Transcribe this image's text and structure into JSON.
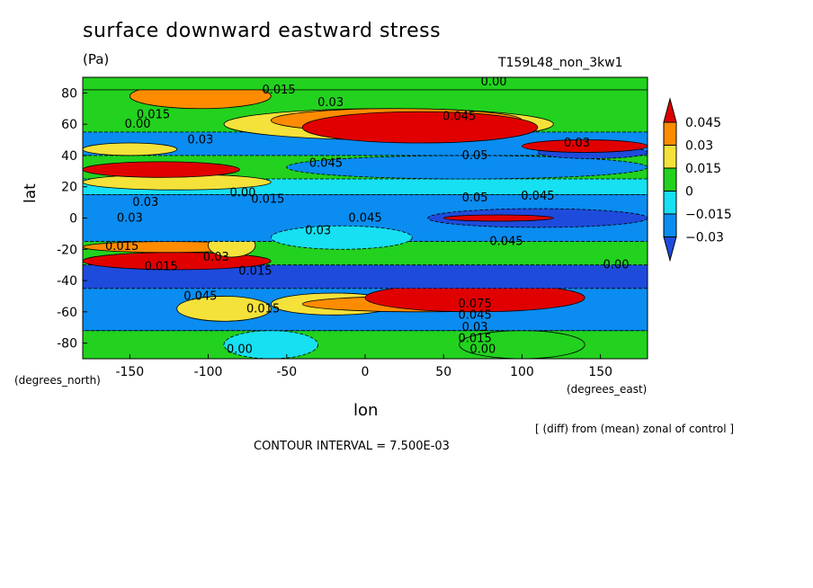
{
  "chart_data": {
    "type": "heatmap",
    "title": "surface downward eastward stress",
    "units": "(Pa)",
    "run_id": "T159L48_non_3kw1",
    "xlabel": "lon",
    "ylabel": "lat",
    "x_units_label": "(degrees_east)",
    "y_units_label": "(degrees_north)",
    "note": "[ (diff) from (mean) zonal of control ]",
    "contour_interval": "CONTOUR INTERVAL = 7.500E-03",
    "xlim": [
      -180,
      180
    ],
    "ylim": [
      -90,
      90
    ],
    "x_ticks": [
      -150,
      -100,
      -50,
      0,
      50,
      100,
      150
    ],
    "x_tick_labels": [
      "-150",
      "-100",
      "-50",
      "0",
      "50",
      "100",
      "150"
    ],
    "y_ticks": [
      80,
      60,
      40,
      20,
      0,
      -20,
      -40,
      -60,
      -80
    ],
    "y_tick_labels": [
      "80",
      "60",
      "40",
      "20",
      "0",
      "-20",
      "-40",
      "-60",
      "-80"
    ],
    "colorbar": {
      "labels": [
        "0.045",
        "0.03",
        "0.015",
        "0",
        "−0.015",
        "−0.03"
      ],
      "colors": [
        "#e00000",
        "#ff8c00",
        "#f4e23a",
        "#22d21e",
        "#16e0f2",
        "#0a8cf0",
        "#1e4bdc"
      ]
    },
    "grid": false,
    "regions": [
      {
        "lon": [
          -180,
          180
        ],
        "lat": [
          -90,
          90
        ],
        "level": 0.0
      },
      {
        "lon": [
          -180,
          180
        ],
        "lat": [
          -90,
          -72
        ],
        "level": 0.0
      },
      {
        "lon": [
          -90,
          -30
        ],
        "lat": [
          -90,
          -72
        ],
        "level": -0.015
      },
      {
        "lon": [
          60,
          140
        ],
        "lat": [
          -90,
          -72
        ],
        "level": 0.0
      },
      {
        "lon": [
          -180,
          180
        ],
        "lat": [
          -72,
          -45
        ],
        "level": -0.03
      },
      {
        "lon": [
          -120,
          -60
        ],
        "lat": [
          -66,
          -50
        ],
        "level": 0.015
      },
      {
        "lon": [
          -60,
          20
        ],
        "lat": [
          -62,
          -48
        ],
        "level": 0.015
      },
      {
        "lon": [
          -40,
          110
        ],
        "lat": [
          -60,
          -50
        ],
        "level": 0.03
      },
      {
        "lon": [
          0,
          140
        ],
        "lat": [
          -60,
          -42
        ],
        "level": 0.045
      },
      {
        "lon": [
          -180,
          180
        ],
        "lat": [
          -45,
          -30
        ],
        "level": -0.045
      },
      {
        "lon": [
          -180,
          -60
        ],
        "lat": [
          -33,
          -22
        ],
        "level": 0.045
      },
      {
        "lon": [
          -180,
          -70
        ],
        "lat": [
          -22,
          -15
        ],
        "level": 0.03
      },
      {
        "lon": [
          -100,
          -70
        ],
        "lat": [
          -25,
          -10
        ],
        "level": 0.015
      },
      {
        "lon": [
          -180,
          180
        ],
        "lat": [
          -15,
          15
        ],
        "level": -0.03
      },
      {
        "lon": [
          -60,
          30
        ],
        "lat": [
          -20,
          -5
        ],
        "level": -0.015
      },
      {
        "lon": [
          40,
          180
        ],
        "lat": [
          -6,
          6
        ],
        "level": -0.045
      },
      {
        "lon": [
          50,
          120
        ],
        "lat": [
          -2,
          2
        ],
        "level": 0.045
      },
      {
        "lon": [
          -180,
          180
        ],
        "lat": [
          15,
          25
        ],
        "level": -0.015
      },
      {
        "lon": [
          -180,
          -60
        ],
        "lat": [
          18,
          28
        ],
        "level": 0.015
      },
      {
        "lon": [
          -180,
          -80
        ],
        "lat": [
          26,
          36
        ],
        "level": 0.045
      },
      {
        "lon": [
          -50,
          180
        ],
        "lat": [
          25,
          40
        ],
        "level": -0.03
      },
      {
        "lon": [
          -180,
          180
        ],
        "lat": [
          40,
          55
        ],
        "level": -0.03
      },
      {
        "lon": [
          -180,
          -120
        ],
        "lat": [
          40,
          48
        ],
        "level": 0.015
      },
      {
        "lon": [
          -90,
          120
        ],
        "lat": [
          50,
          70
        ],
        "level": 0.015
      },
      {
        "lon": [
          -60,
          100
        ],
        "lat": [
          55,
          70
        ],
        "level": 0.03
      },
      {
        "lon": [
          -40,
          110
        ],
        "lat": [
          48,
          68
        ],
        "level": 0.045
      },
      {
        "lon": [
          110,
          180
        ],
        "lat": [
          38,
          46
        ],
        "level": -0.045
      },
      {
        "lon": [
          100,
          180
        ],
        "lat": [
          42,
          50
        ],
        "level": 0.045
      },
      {
        "lon": [
          -150,
          -60
        ],
        "lat": [
          70,
          86
        ],
        "level": 0.03
      },
      {
        "lon": [
          -180,
          180
        ],
        "lat": [
          82,
          90
        ],
        "level": 0.0
      }
    ],
    "contour_labels": [
      {
        "lon": -55,
        "lat": 82,
        "text": "0.015"
      },
      {
        "lon": -22,
        "lat": 74,
        "text": "0.03"
      },
      {
        "lon": 82,
        "lat": 87,
        "text": "0.00"
      },
      {
        "lon": -135,
        "lat": 66,
        "text": "0.015"
      },
      {
        "lon": -145,
        "lat": 60,
        "text": "0.00"
      },
      {
        "lon": 60,
        "lat": 65,
        "text": "0.045"
      },
      {
        "lon": -105,
        "lat": 50,
        "text": "0.03"
      },
      {
        "lon": 135,
        "lat": 48,
        "text": "0.03"
      },
      {
        "lon": -25,
        "lat": 35,
        "text": "0.045"
      },
      {
        "lon": 70,
        "lat": 40,
        "text": "0.05"
      },
      {
        "lon": -78,
        "lat": 16,
        "text": "0.00"
      },
      {
        "lon": -62,
        "lat": 12,
        "text": "0.015"
      },
      {
        "lon": -140,
        "lat": 10,
        "text": "0.03"
      },
      {
        "lon": -150,
        "lat": 0,
        "text": "0.03"
      },
      {
        "lon": 0,
        "lat": 0,
        "text": "0.045"
      },
      {
        "lon": -30,
        "lat": -8,
        "text": "0.03"
      },
      {
        "lon": 70,
        "lat": 13,
        "text": "0.05"
      },
      {
        "lon": 110,
        "lat": 14,
        "text": "0.045"
      },
      {
        "lon": 90,
        "lat": -15,
        "text": "0.045"
      },
      {
        "lon": -155,
        "lat": -18,
        "text": "0.015"
      },
      {
        "lon": -95,
        "lat": -25,
        "text": "0.03"
      },
      {
        "lon": -130,
        "lat": -31,
        "text": "0.015"
      },
      {
        "lon": -70,
        "lat": -34,
        "text": "0.015"
      },
      {
        "lon": -105,
        "lat": -50,
        "text": "0.045"
      },
      {
        "lon": -65,
        "lat": -58,
        "text": "0.015"
      },
      {
        "lon": 70,
        "lat": -55,
        "text": "0.075"
      },
      {
        "lon": 70,
        "lat": -62,
        "text": "0.045"
      },
      {
        "lon": 70,
        "lat": -70,
        "text": "0.03"
      },
      {
        "lon": 70,
        "lat": -77,
        "text": "0.015"
      },
      {
        "lon": -80,
        "lat": -84,
        "text": "0.00"
      },
      {
        "lon": 75,
        "lat": -84,
        "text": "0.00"
      },
      {
        "lon": 160,
        "lat": -30,
        "text": "0.00"
      }
    ]
  }
}
